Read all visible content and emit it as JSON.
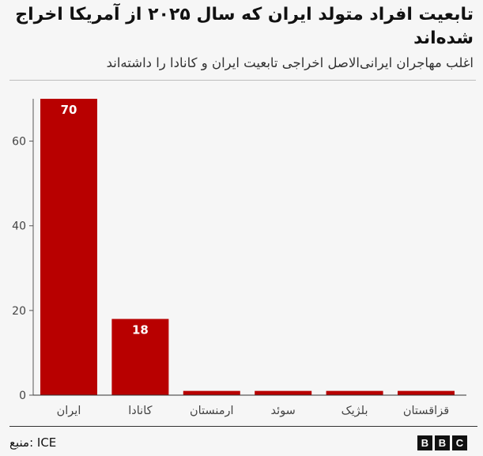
{
  "chart_data": {
    "type": "bar",
    "title": "تابعیت افراد متولد ایران که سال ۲۰۲۵ از آمریکا اخراج شده‌اند",
    "subtitle": "اغلب مهاجران ایرانی‌الاصل اخراجی تابعیت ایران و کانادا را داشته‌اند",
    "categories": [
      "ایران",
      "کانادا",
      "ارمنستان",
      "سوئد",
      "بلژیک",
      "قزاقستان"
    ],
    "values": [
      70,
      18,
      1,
      1,
      1,
      1
    ],
    "data_labels": [
      "70",
      "18",
      "",
      "",
      "",
      ""
    ],
    "ylim": [
      0,
      70
    ],
    "yticks": [
      "0",
      "20",
      "40",
      "60"
    ],
    "ytick_values": [
      0,
      20,
      40,
      60
    ],
    "grid": false,
    "bar_color": "#b80000"
  },
  "footer": {
    "source": "منبع: ICE",
    "logo_letters": [
      "B",
      "B",
      "C"
    ]
  }
}
